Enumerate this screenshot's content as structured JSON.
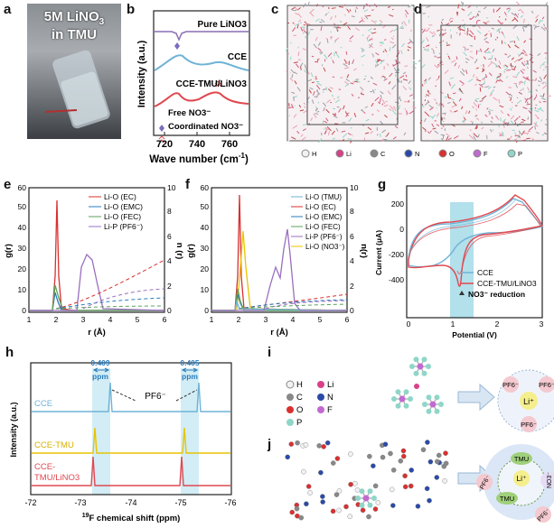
{
  "panels": {
    "a": {
      "label": "a",
      "title_line1": "5M LiNO",
      "title_sub": "3",
      "title_line2": "in TMU"
    },
    "b": {
      "label": "b",
      "ylabel": "Intensity (a.u.)",
      "xlabel": "Wave number (cm",
      "xlabel_sup": "-1",
      "xlabel_end": ")",
      "curve_labels": [
        "Pure LiNO3",
        "CCE",
        "CCE-TMU/LiNO3"
      ],
      "legend": [
        "Free NO3⁻",
        "Coordinated NO3⁻"
      ],
      "ticks": [
        "720",
        "740",
        "760"
      ]
    },
    "c": {
      "label": "c"
    },
    "d": {
      "label": "d"
    },
    "atoms": {
      "items": [
        "H",
        "Li",
        "C",
        "N",
        "O",
        "F",
        "P"
      ]
    },
    "e": {
      "label": "e",
      "ylabel": "g(r)",
      "y2label": "n (r)",
      "xlabel": "r (Å)",
      "legend": [
        "Li-O (EC)",
        "Li-O (EMC)",
        "Li-O (FEC)",
        "Li-P (PF6⁻)"
      ],
      "yticks": [
        "0",
        "10",
        "20",
        "30",
        "40",
        "50",
        "60"
      ],
      "y2ticks": [
        "0",
        "2",
        "4",
        "6",
        "8",
        "10"
      ],
      "xticks": [
        "1",
        "2",
        "3",
        "4",
        "5",
        "6"
      ]
    },
    "f": {
      "label": "f",
      "ylabel": "g(r)",
      "y2label": "n(r)",
      "xlabel": "r (Å)",
      "legend": [
        "Li-O (TMU)",
        "Li-O (EC)",
        "Li-O (EMC)",
        "Li-O (FEC)",
        "Li-P (PF6⁻)",
        "Li-O (NO3⁻)"
      ],
      "yticks": [
        "0",
        "10",
        "20",
        "30",
        "40",
        "50",
        "60"
      ],
      "y2ticks": [
        "0",
        "2",
        "4",
        "6",
        "8",
        "10"
      ],
      "xticks": [
        "1",
        "2",
        "3",
        "4",
        "5",
        "6"
      ]
    },
    "g": {
      "label": "g",
      "ylabel": "Current (μA)",
      "xlabel": "Potential (V)",
      "legend": [
        "CCE",
        "CCE-TMU/LiNO3"
      ],
      "annotation": "NO3⁻ reduction",
      "yticks": [
        "200",
        "0",
        "-200",
        "-400"
      ],
      "xticks": [
        "0",
        "1",
        "2",
        "3"
      ]
    },
    "h": {
      "label": "h",
      "ylabel": "Intensity (a.u.)",
      "xlabel": "F chemical shift (ppm)",
      "xlabel_sup": "19",
      "traces": [
        "CCE",
        "CCE-TMU",
        "CCE-",
        "TMU/LiNO3"
      ],
      "peak_labels": [
        "0.409",
        "ppm",
        "0.405",
        "ppm",
        "PF6⁻"
      ],
      "xticks": [
        "-72",
        "-73",
        "-74",
        "-75",
        "-76"
      ]
    },
    "i": {
      "label": "i",
      "legend": [
        "H",
        "Li",
        "C",
        "N",
        "O",
        "F",
        "P"
      ],
      "ions": [
        "PF6⁻",
        "PF6⁻",
        "PF6⁻",
        "Li⁺"
      ]
    },
    "j": {
      "label": "j",
      "ions": [
        "PF6⁻",
        "NO3⁻",
        "PF6⁻",
        "Li⁺",
        "TMU",
        "TMU"
      ]
    }
  },
  "colors": {
    "cce": "#6fb3d6",
    "tmu": "#e04850",
    "blue": "#2a7dbf",
    "purple": "#9a6fbf",
    "green": "#5aa35a",
    "yellow": "#e8c400",
    "red": "#d9302f",
    "shade": "#9fd8e6"
  }
}
